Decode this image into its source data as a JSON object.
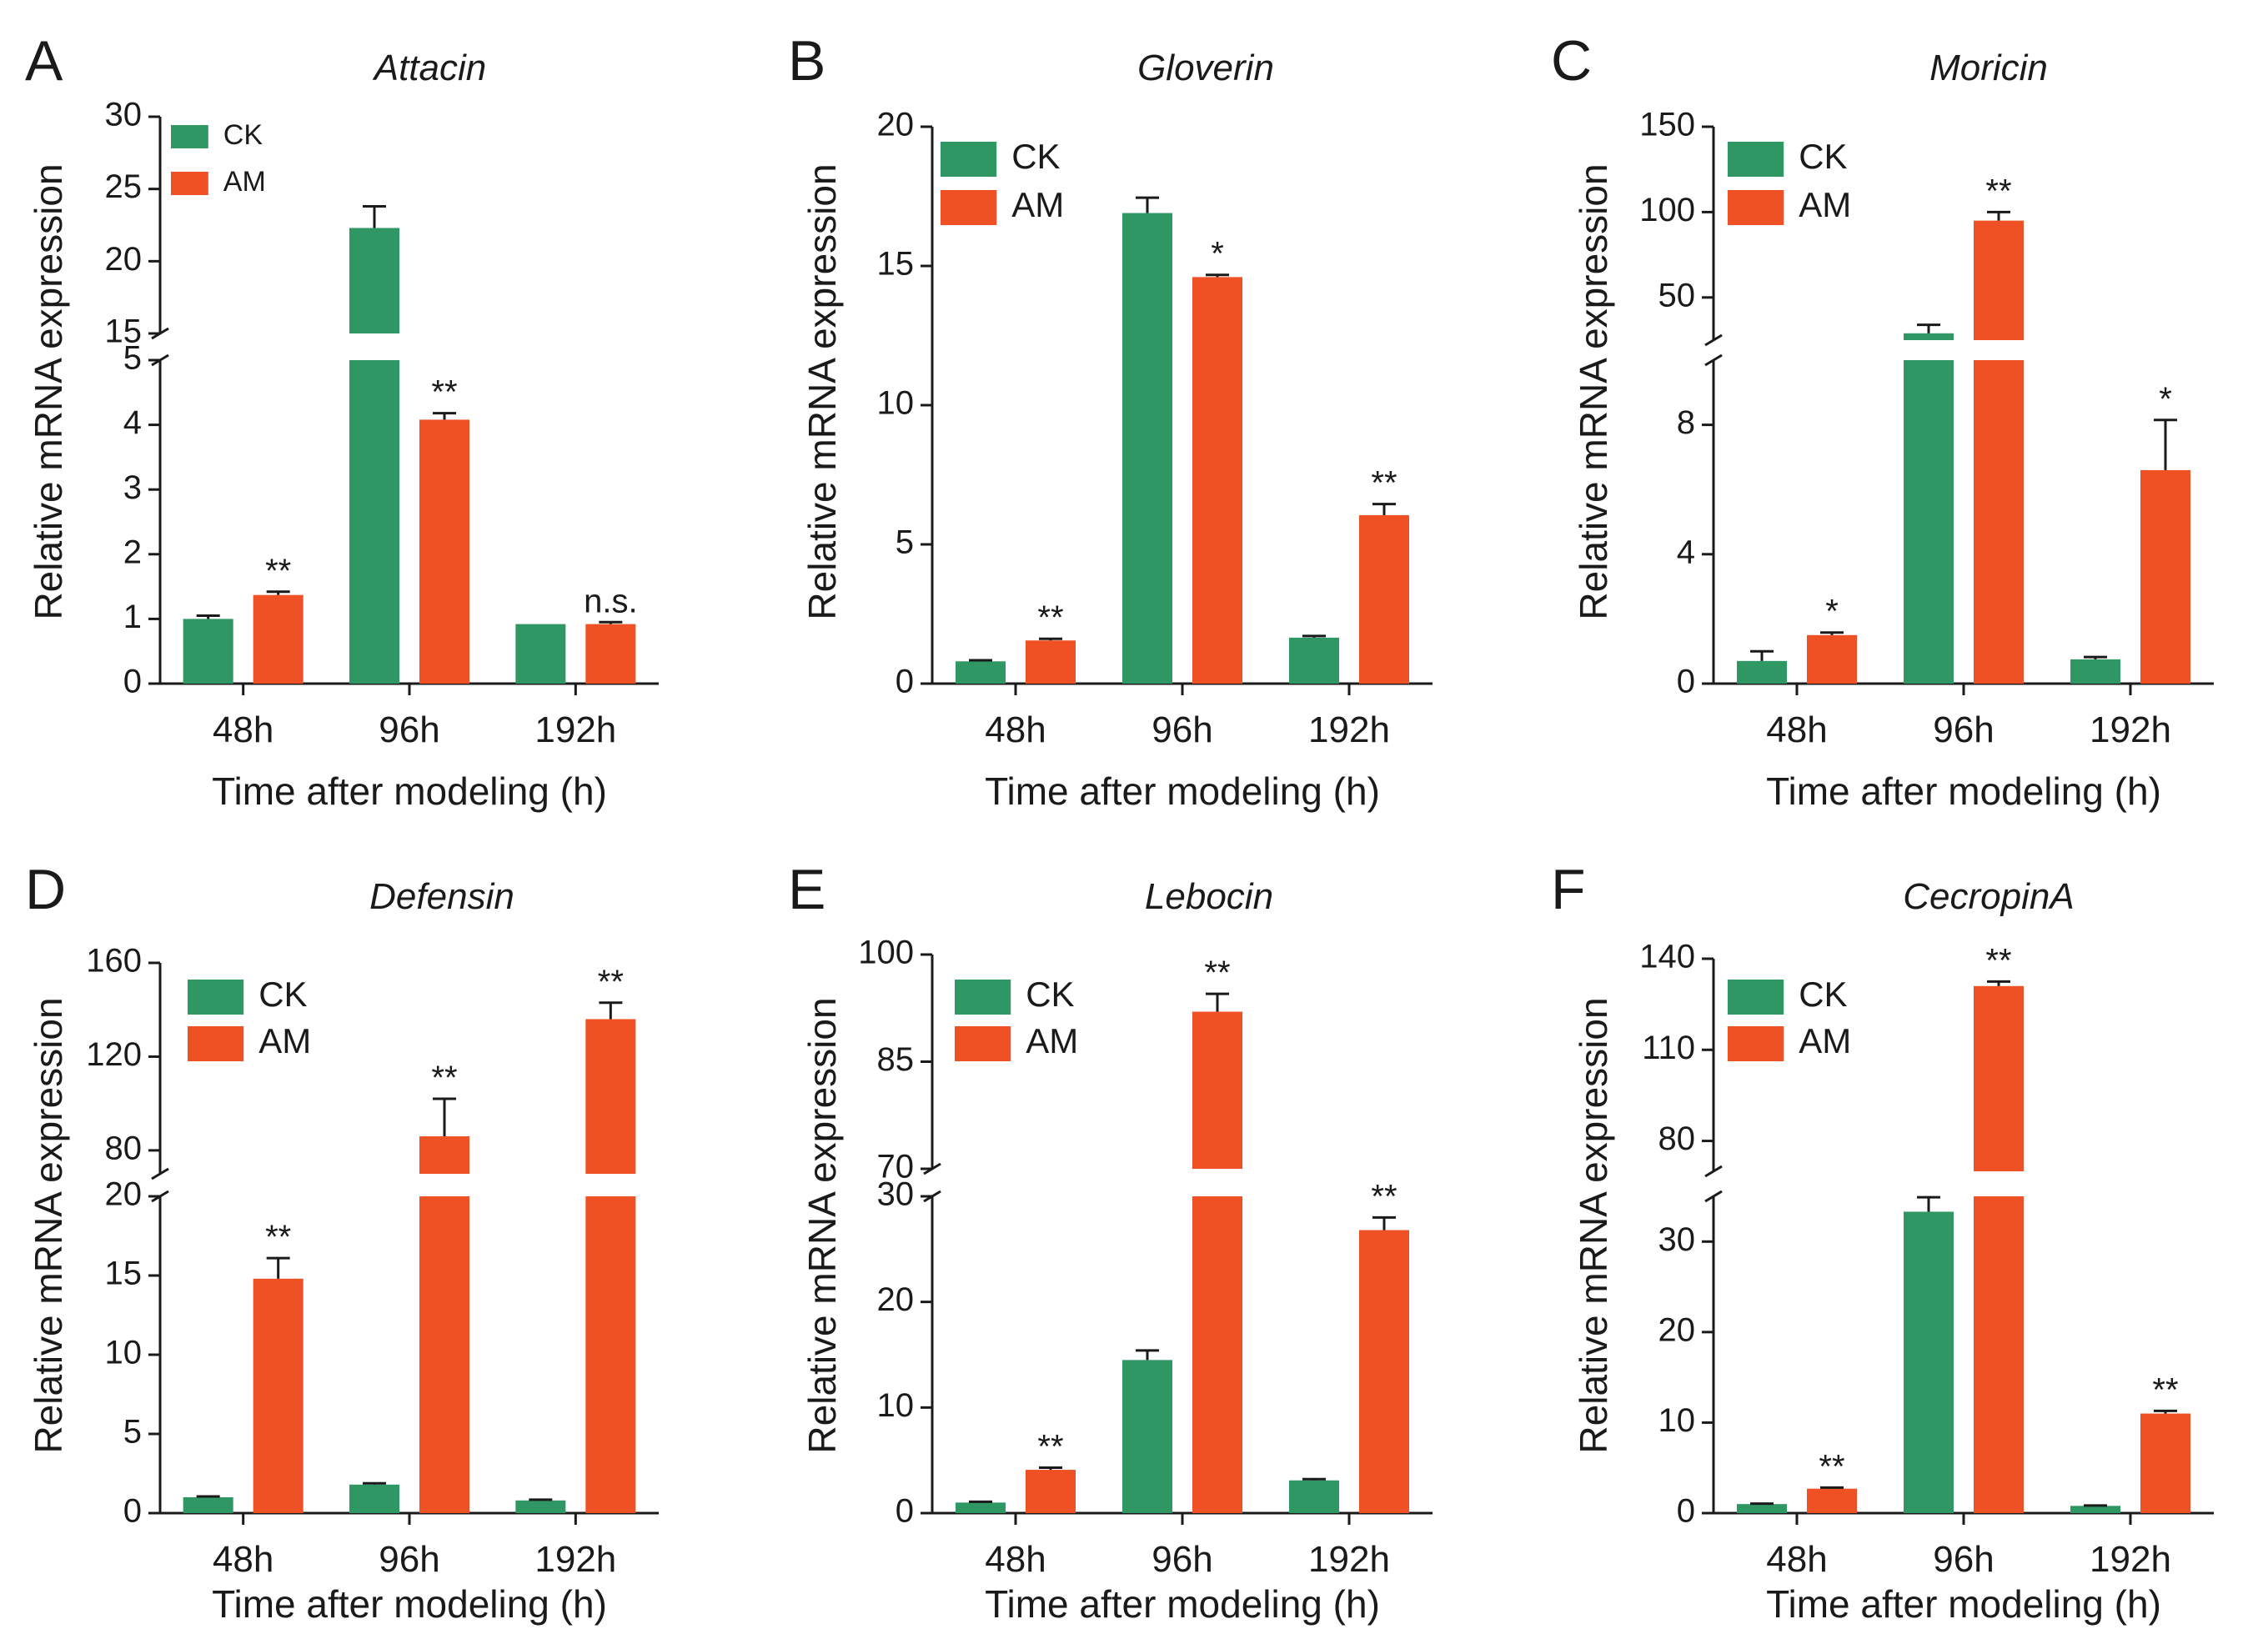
{
  "colors": {
    "ck": "#2e9764",
    "am": "#ef5124",
    "axis": "#1a1a1a",
    "background": "#ffffff"
  },
  "chart_data": [
    {
      "panel": "A",
      "type": "bar",
      "title": "Attacin",
      "ylabel": "Relative mRNA expression",
      "xlabel": "Time after modeling (h)",
      "categories": [
        "48h",
        "96h",
        "192h"
      ],
      "legend": [
        "CK",
        "AM"
      ],
      "axis_break": {
        "lower_range": [
          0,
          5
        ],
        "upper_range": [
          15,
          30
        ]
      },
      "lower_ticks": [
        0,
        1,
        2,
        3,
        4,
        5
      ],
      "upper_ticks": [
        15,
        20,
        25,
        30
      ],
      "series": [
        {
          "name": "CK",
          "values": [
            1.0,
            22.3,
            0.92
          ],
          "errors": [
            0.05,
            1.5,
            0.0
          ]
        },
        {
          "name": "AM",
          "values": [
            1.37,
            4.08,
            0.92
          ],
          "errors": [
            0.05,
            0.1,
            0.03
          ]
        }
      ],
      "significance": [
        "**",
        "**",
        "n.s."
      ]
    },
    {
      "panel": "B",
      "type": "bar",
      "title": "Gloverin",
      "ylabel": "Relative mRNA expression",
      "xlabel": "Time after modeling (h)",
      "categories": [
        "48h",
        "96h",
        "192h"
      ],
      "legend": [
        "CK",
        "AM"
      ],
      "axis_break": null,
      "ylim": [
        0,
        20
      ],
      "ticks": [
        0,
        5,
        10,
        15,
        20
      ],
      "series": [
        {
          "name": "CK",
          "values": [
            0.8,
            16.9,
            1.65
          ],
          "errors": [
            0.04,
            0.55,
            0.06
          ]
        },
        {
          "name": "AM",
          "values": [
            1.55,
            14.6,
            6.05
          ],
          "errors": [
            0.06,
            0.08,
            0.4
          ]
        }
      ],
      "significance": [
        "**",
        "*",
        "**"
      ]
    },
    {
      "panel": "C",
      "type": "bar",
      "title": "Moricin",
      "ylabel": "Relative mRNA expression",
      "xlabel": "Time after modeling (h)",
      "categories": [
        "48h",
        "96h",
        "192h"
      ],
      "legend": [
        "CK",
        "AM"
      ],
      "axis_break": {
        "lower_range": [
          0,
          10
        ],
        "upper_range": [
          25,
          150
        ]
      },
      "lower_ticks": [
        0,
        4,
        8
      ],
      "upper_ticks": [
        50,
        100,
        150
      ],
      "series": [
        {
          "name": "CK",
          "values": [
            0.7,
            29.0,
            0.75
          ],
          "errors": [
            0.3,
            5.0,
            0.07
          ]
        },
        {
          "name": "AM",
          "values": [
            1.5,
            95.0,
            6.6
          ],
          "errors": [
            0.08,
            5.0,
            1.55
          ]
        }
      ],
      "significance": [
        "*",
        "**",
        "*"
      ]
    },
    {
      "panel": "D",
      "type": "bar",
      "title": "Defensin",
      "ylabel": "Relative mRNA expression",
      "xlabel": "Time after modeling (h)",
      "categories": [
        "48h",
        "96h",
        "192h"
      ],
      "legend": [
        "CK",
        "AM"
      ],
      "axis_break": {
        "lower_range": [
          0,
          20
        ],
        "upper_range": [
          70,
          160
        ]
      },
      "lower_ticks": [
        0,
        5,
        10,
        15,
        20
      ],
      "upper_ticks": [
        80,
        120,
        160
      ],
      "series": [
        {
          "name": "CK",
          "values": [
            1.0,
            1.8,
            0.8
          ],
          "errors": [
            0.05,
            0.08,
            0.05
          ]
        },
        {
          "name": "AM",
          "values": [
            14.8,
            86.0,
            136.0
          ],
          "errors": [
            1.3,
            16.0,
            7.0
          ]
        }
      ],
      "significance": [
        "**",
        "**",
        "**"
      ]
    },
    {
      "panel": "E",
      "type": "bar",
      "title": "Lebocin",
      "ylabel": "Relative mRNA expression",
      "xlabel": "Time after modeling (h)",
      "categories": [
        "48h",
        "96h",
        "192h"
      ],
      "legend": [
        "CK",
        "AM"
      ],
      "axis_break": {
        "lower_range": [
          0,
          30
        ],
        "upper_range": [
          70,
          100
        ]
      },
      "lower_ticks": [
        0,
        10,
        20,
        30
      ],
      "upper_ticks": [
        70,
        85,
        100
      ],
      "series": [
        {
          "name": "CK",
          "values": [
            1.0,
            14.5,
            3.1
          ],
          "errors": [
            0.08,
            0.9,
            0.12
          ]
        },
        {
          "name": "AM",
          "values": [
            4.1,
            92.0,
            26.8
          ],
          "errors": [
            0.2,
            2.5,
            1.2
          ]
        }
      ],
      "significance": [
        "**",
        "**",
        "**"
      ]
    },
    {
      "panel": "F",
      "type": "bar",
      "title": "CecropinA",
      "ylabel": "Relative mRNA expression",
      "xlabel": "Time after modeling (h)",
      "categories": [
        "48h",
        "96h",
        "192h"
      ],
      "legend": [
        "CK",
        "AM"
      ],
      "axis_break": {
        "lower_range": [
          0,
          35
        ],
        "upper_range": [
          70,
          140
        ]
      },
      "lower_ticks": [
        0,
        10,
        20,
        30
      ],
      "upper_ticks": [
        80,
        110,
        140
      ],
      "series": [
        {
          "name": "CK",
          "values": [
            1.0,
            33.3,
            0.8
          ],
          "errors": [
            0.05,
            1.6,
            0.04
          ]
        },
        {
          "name": "AM",
          "values": [
            2.7,
            131.0,
            11.0
          ],
          "errors": [
            0.12,
            1.5,
            0.3
          ]
        }
      ],
      "significance": [
        "**",
        "**",
        "**"
      ]
    }
  ]
}
